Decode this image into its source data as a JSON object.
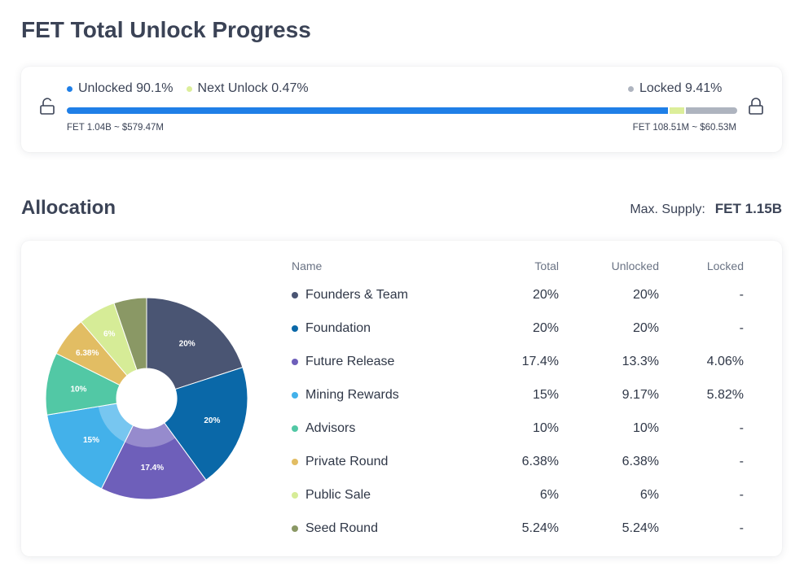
{
  "page_title": "FET Total Unlock Progress",
  "progress": {
    "unlocked_label": "Unlocked 90.1%",
    "next_label": "Next Unlock 0.47%",
    "locked_label": "Locked 9.41%",
    "unlocked_fraction": 0.901,
    "next_fraction": 0.0047,
    "locked_fraction": 0.0941,
    "left_caption": "FET 1.04B ~ $579.47M",
    "right_caption": "FET 108.51M ~ $60.53M",
    "colors": {
      "unlocked": "#1f7fe7",
      "next": "#dcee9a",
      "locked": "#aeb4bf"
    }
  },
  "allocation": {
    "title": "Allocation",
    "max_supply_label": "Max. Supply:",
    "max_supply_value": "FET 1.15B",
    "columns": {
      "name": "Name",
      "total": "Total",
      "unlocked": "Unlocked",
      "locked": "Locked"
    },
    "rows": [
      {
        "name": "Founders & Team",
        "total": "20%",
        "unlocked": "20%",
        "locked": "-",
        "color": "#4a5573"
      },
      {
        "name": "Foundation",
        "total": "20%",
        "unlocked": "20%",
        "locked": "-",
        "color": "#0a68a8"
      },
      {
        "name": "Future Release",
        "total": "17.4%",
        "unlocked": "13.3%",
        "locked": "4.06%",
        "color": "#6e5fba"
      },
      {
        "name": "Mining Rewards",
        "total": "15%",
        "unlocked": "9.17%",
        "locked": "5.82%",
        "color": "#43b1ea"
      },
      {
        "name": "Advisors",
        "total": "10%",
        "unlocked": "10%",
        "locked": "-",
        "color": "#52c8a5"
      },
      {
        "name": "Private Round",
        "total": "6.38%",
        "unlocked": "6.38%",
        "locked": "-",
        "color": "#e2bd63"
      },
      {
        "name": "Public Sale",
        "total": "6%",
        "unlocked": "6%",
        "locked": "-",
        "color": "#d6ec97"
      },
      {
        "name": "Seed Round",
        "total": "5.24%",
        "unlocked": "5.24%",
        "locked": "-",
        "color": "#8a9865"
      }
    ]
  },
  "chart_data": {
    "type": "pie",
    "categories": [
      "Founders & Team",
      "Foundation",
      "Future Release",
      "Mining Rewards",
      "Advisors",
      "Private Round",
      "Public Sale",
      "Seed Round"
    ],
    "values": [
      20,
      20,
      17.4,
      15,
      10,
      6.38,
      6,
      5.24
    ],
    "data_labels": [
      "20%",
      "20%",
      "17.4%",
      "15%",
      "10%",
      "6.38%",
      "6%",
      ""
    ],
    "locked_portion": {
      "Future Release": 4.06,
      "Mining Rewards": 5.82
    },
    "title": "",
    "legend": "table-right"
  }
}
